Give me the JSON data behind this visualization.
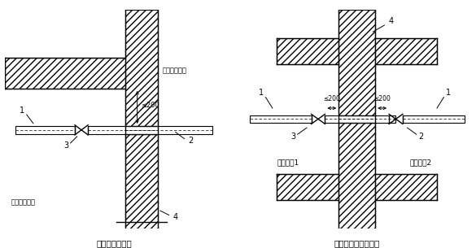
{
  "bg_color": "#ffffff",
  "line_color": "#000000",
  "title1": "管道从侧墙出入",
  "title2": "管道从相邻单元引入",
  "label_outside": "防空地下室外",
  "label_inside": "防空地下室内",
  "label_unit1": "防护单元1",
  "label_unit2": "防护单元2",
  "dim_200": "≤200",
  "num1": "1",
  "num2": "2",
  "num3": "3",
  "num4": "4"
}
